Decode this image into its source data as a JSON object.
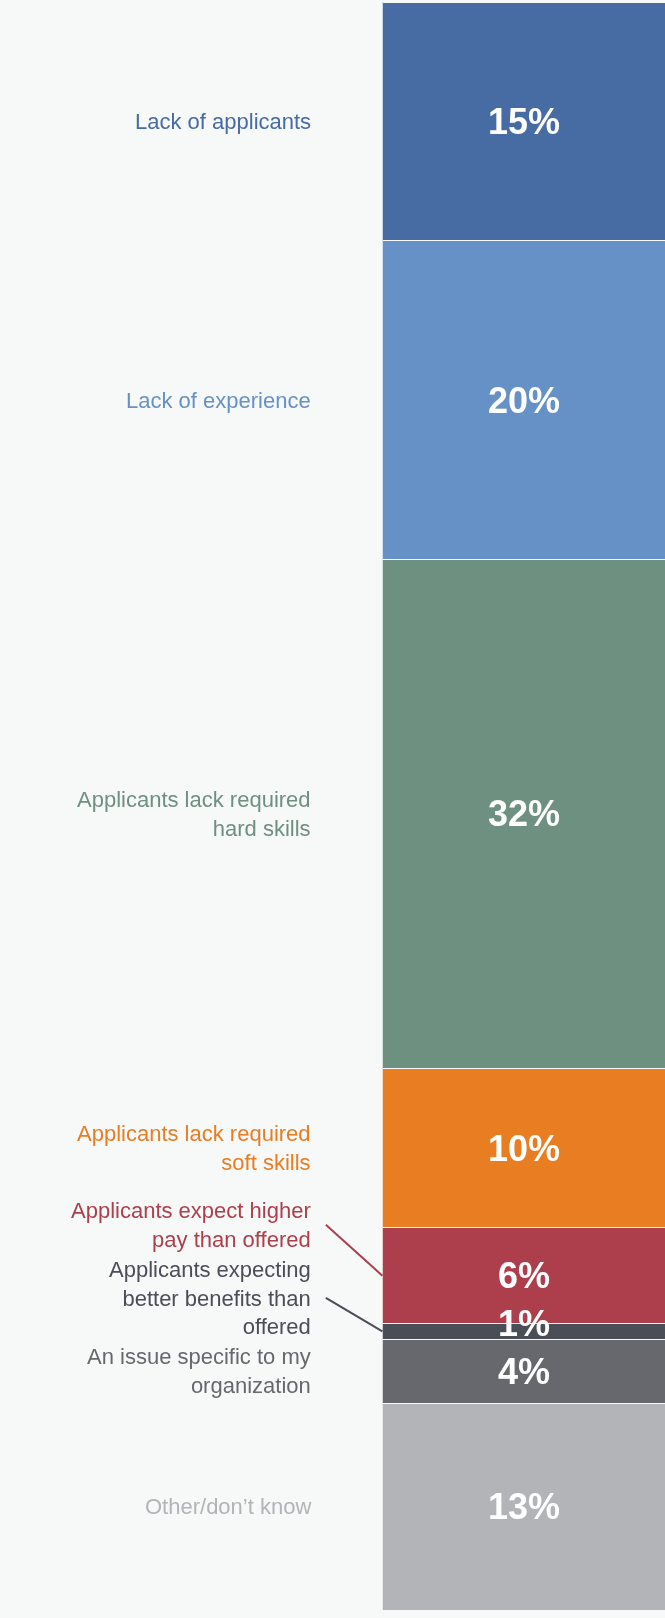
{
  "chart_data": {
    "type": "bar",
    "stacked": true,
    "categories": [
      null
    ],
    "series": [
      {
        "name": "Other/don’t know",
        "color": "#b3b4b8",
        "values": [
          13
        ],
        "value_labels": [
          "13%"
        ]
      },
      {
        "name": "An issue specific to my organization",
        "color": "#67686d",
        "values": [
          4
        ],
        "value_labels": [
          "4%"
        ]
      },
      {
        "name": "Applicants expecting better benefits than offered",
        "color": "#4a4e57",
        "values": [
          1
        ],
        "value_labels": [
          "1%"
        ]
      },
      {
        "name": "Applicants expect higher pay than offered",
        "color": "#ac3f4b",
        "values": [
          6
        ],
        "value_labels": [
          "6%"
        ]
      },
      {
        "name": "Applicants lack required soft skills",
        "color": "#e87d22",
        "values": [
          10
        ],
        "value_labels": [
          "10%"
        ]
      },
      {
        "name": "Applicants lack required hard skills",
        "color": "#6e9080",
        "values": [
          32
        ],
        "value_labels": [
          "32%"
        ]
      },
      {
        "name": "Lack of experience",
        "color": "#6591c7",
        "values": [
          20
        ],
        "value_labels": [
          "20%"
        ]
      },
      {
        "name": "Lack of applicants",
        "color": "#466ca3",
        "values": [
          15
        ],
        "value_labels": [
          "15%"
        ]
      }
    ]
  }
}
